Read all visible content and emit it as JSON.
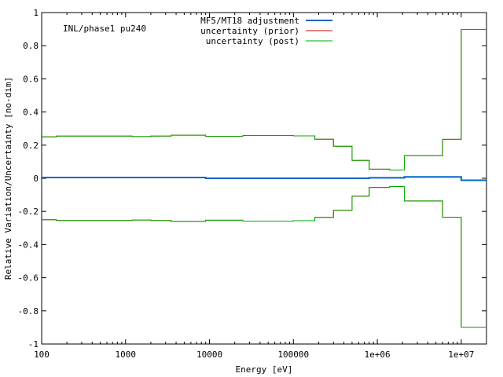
{
  "chart_data": {
    "type": "line",
    "step": true,
    "annotation": "INL/phase1 pu240",
    "xlabel": "Energy [eV]",
    "ylabel": "Relative Variation/Uncertainty [no-dim]",
    "xscale": "log",
    "xlim": [
      100,
      20000000
    ],
    "ylim": [
      -1,
      1
    ],
    "xticks": [
      100,
      1000,
      10000,
      100000,
      1000000,
      10000000
    ],
    "xtick_labels": [
      "100",
      "1000",
      "10000",
      "100000",
      "1e+06",
      "1e+07"
    ],
    "yticks": [
      -1,
      -0.8,
      -0.6,
      -0.4,
      -0.2,
      0,
      0.2,
      0.4,
      0.6,
      0.8,
      1
    ],
    "ytick_labels": [
      "-1",
      "-0.8",
      "-0.6",
      "-0.4",
      "-0.2",
      "0",
      "0.2",
      "0.4",
      "0.6",
      "0.8",
      "1"
    ],
    "grid": false,
    "legend_position": "top-right",
    "bin_edges": [
      100,
      150,
      1200,
      2000,
      3500,
      9000,
      25000,
      100000,
      180000,
      300000,
      500000,
      800000,
      1400000,
      2100000,
      6000000,
      10000000,
      20000000
    ],
    "series": [
      {
        "name": "MF5/MT18 adjustment",
        "color": "#0066cc",
        "values": [
          0.005,
          0.005,
          0.005,
          0.005,
          0.005,
          0.0,
          0.0,
          0.0,
          0.0,
          0.0,
          0.0,
          0.003,
          0.003,
          0.008,
          0.008,
          -0.012
        ]
      },
      {
        "name": "uncertainty (prior)",
        "color": "#cc0000",
        "mirror": true,
        "values": [
          0.25,
          0.255,
          0.252,
          0.255,
          0.26,
          0.253,
          0.258,
          0.256,
          0.236,
          0.193,
          0.108,
          0.055,
          0.05,
          0.137,
          0.235,
          0.898
        ]
      },
      {
        "name": "uncertainty (post)",
        "color": "#00aa00",
        "mirror": true,
        "values": [
          0.25,
          0.255,
          0.252,
          0.255,
          0.26,
          0.253,
          0.258,
          0.256,
          0.236,
          0.193,
          0.108,
          0.055,
          0.05,
          0.137,
          0.235,
          0.898
        ]
      }
    ]
  }
}
